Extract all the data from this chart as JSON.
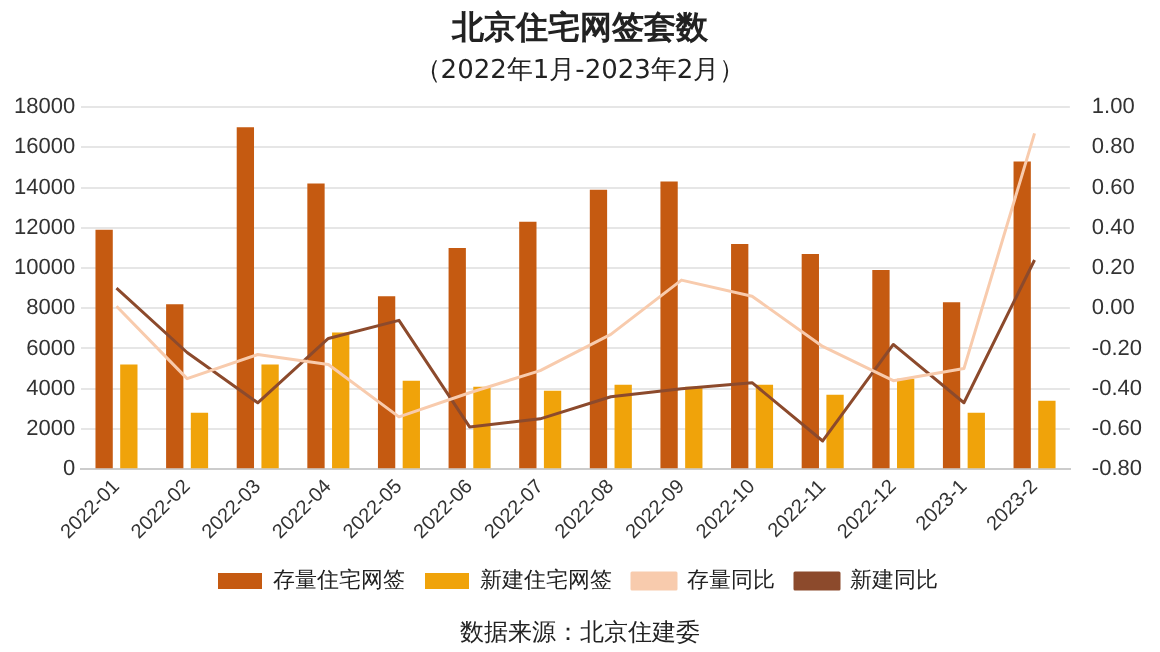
{
  "chart_data": {
    "type": "bar",
    "title": "北京住宅网签套数",
    "subtitle": "（2022年1月-2023年2月）",
    "categories": [
      "2022-01",
      "2022-02",
      "2022-03",
      "2022-04",
      "2022-05",
      "2022-06",
      "2022-07",
      "2022-08",
      "2022-09",
      "2022-10",
      "2022-11",
      "2022-12",
      "2023-1",
      "2023-2"
    ],
    "series": [
      {
        "name": "存量住宅网签",
        "color": "#c55a11",
        "values": [
          11900,
          8200,
          17000,
          14200,
          8600,
          11000,
          12300,
          13900,
          14300,
          11200,
          10700,
          9900,
          8300,
          15300
        ]
      },
      {
        "name": "新建住宅网签",
        "color": "#f0a30a",
        "values": [
          5200,
          2800,
          5200,
          6800,
          4400,
          4100,
          3900,
          4200,
          4100,
          4200,
          3700,
          4500,
          2800,
          3400
        ]
      },
      {
        "name": "存量同比",
        "type": "line",
        "axis": "y2",
        "color": "#f8cbad",
        "values": [
          0.01,
          -0.35,
          -0.23,
          -0.28,
          -0.54,
          -0.42,
          -0.31,
          -0.13,
          0.14,
          0.06,
          -0.19,
          -0.36,
          -0.3,
          0.87
        ]
      },
      {
        "name": "新建同比",
        "type": "line",
        "axis": "y2",
        "color": "#8c4a2c",
        "values": [
          0.1,
          -0.22,
          -0.47,
          -0.15,
          -0.06,
          -0.59,
          -0.55,
          -0.44,
          -0.4,
          -0.37,
          -0.66,
          -0.18,
          -0.47,
          0.24
        ]
      }
    ],
    "ylim": [
      0,
      18000
    ],
    "yticks": [
      0,
      2000,
      4000,
      6000,
      8000,
      10000,
      12000,
      14000,
      16000,
      18000
    ],
    "y2lim": [
      -0.8,
      1.0
    ],
    "y2ticks": [
      {
        "value": -0.8,
        "label": "-0.80"
      },
      {
        "value": -0.6,
        "label": "-0.60"
      },
      {
        "value": -0.4,
        "label": "-0.40"
      },
      {
        "value": -0.2,
        "label": "-0.20"
      },
      {
        "value": 0,
        "label": "0.00"
      },
      {
        "value": 0.2,
        "label": "0.20"
      },
      {
        "value": 0.4,
        "label": "0.40"
      },
      {
        "value": 0.6,
        "label": "0.60"
      },
      {
        "value": 0.8,
        "label": "0.80"
      },
      {
        "value": 1.0,
        "label": "1.00"
      }
    ],
    "grid": "y",
    "legend": "bottom",
    "marker": "none",
    "line_style": "solid",
    "annotations": [
      "数据来源：北京住建委"
    ]
  }
}
